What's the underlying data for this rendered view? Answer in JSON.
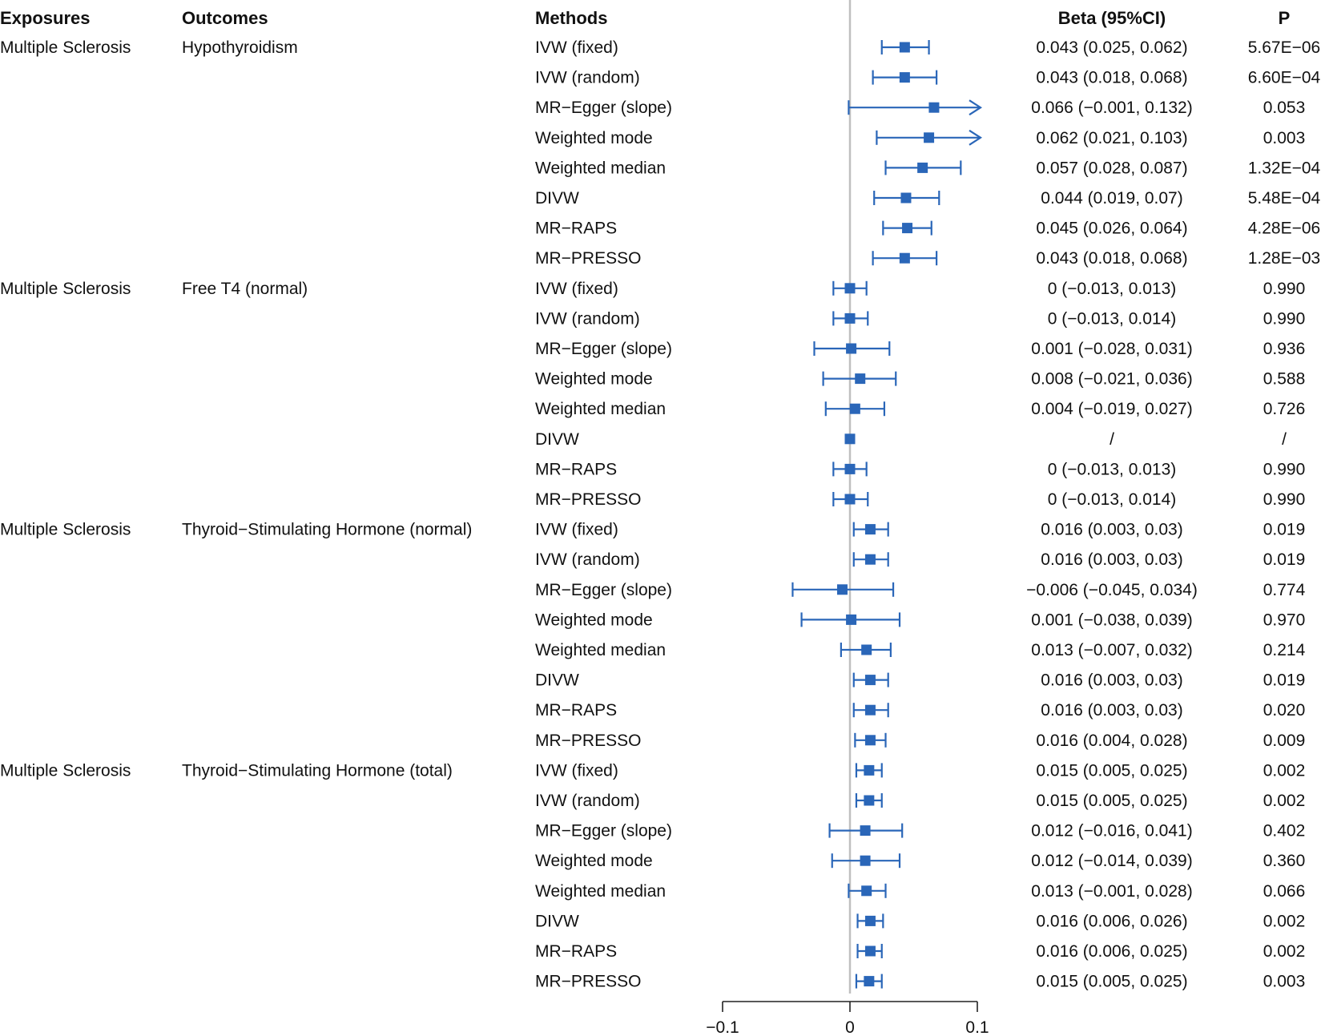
{
  "chart_data": {
    "type": "forest",
    "xlim": [
      -0.1,
      0.1
    ],
    "zero_line": 0,
    "marker_color": "#2a66b8",
    "zero_line_color": "#bfbfbf",
    "headers": {
      "exposures": "Exposures",
      "outcomes": "Outcomes",
      "methods": "Methods",
      "beta": "Beta (95%CI)",
      "p": "P"
    },
    "x_ticks": [
      {
        "value": -0.1,
        "label": "−0.1"
      },
      {
        "value": 0,
        "label": "0"
      },
      {
        "value": 0.1,
        "label": "0.1"
      }
    ],
    "groups": [
      {
        "exposure": "Multiple Sclerosis",
        "outcome": "Hypothyroidism",
        "rows": [
          {
            "method": "IVW (fixed)",
            "beta": 0.043,
            "lower": 0.025,
            "upper": 0.062,
            "beta_text": "0.043 (0.025, 0.062)",
            "p": "5.67E−06"
          },
          {
            "method": "IVW (random)",
            "beta": 0.043,
            "lower": 0.018,
            "upper": 0.068,
            "beta_text": "0.043 (0.018, 0.068)",
            "p": "6.60E−04"
          },
          {
            "method": "MR−Egger (slope)",
            "beta": 0.066,
            "lower": -0.001,
            "upper": 0.132,
            "beta_text": "0.066 (−0.001, 0.132)",
            "p": "0.053"
          },
          {
            "method": "Weighted mode",
            "beta": 0.062,
            "lower": 0.021,
            "upper": 0.103,
            "beta_text": "0.062 (0.021, 0.103)",
            "p": "0.003"
          },
          {
            "method": "Weighted median",
            "beta": 0.057,
            "lower": 0.028,
            "upper": 0.087,
            "beta_text": "0.057 (0.028, 0.087)",
            "p": "1.32E−04"
          },
          {
            "method": "DIVW",
            "beta": 0.044,
            "lower": 0.019,
            "upper": 0.07,
            "beta_text": "0.044 (0.019, 0.07)",
            "p": "5.48E−04"
          },
          {
            "method": "MR−RAPS",
            "beta": 0.045,
            "lower": 0.026,
            "upper": 0.064,
            "beta_text": "0.045 (0.026, 0.064)",
            "p": "4.28E−06"
          },
          {
            "method": "MR−PRESSO",
            "beta": 0.043,
            "lower": 0.018,
            "upper": 0.068,
            "beta_text": "0.043 (0.018, 0.068)",
            "p": "1.28E−03"
          }
        ]
      },
      {
        "exposure": "Multiple Sclerosis",
        "outcome": "Free T4 (normal)",
        "rows": [
          {
            "method": "IVW (fixed)",
            "beta": 0,
            "lower": -0.013,
            "upper": 0.013,
            "beta_text": "0 (−0.013, 0.013)",
            "p": "0.990"
          },
          {
            "method": "IVW (random)",
            "beta": 0,
            "lower": -0.013,
            "upper": 0.014,
            "beta_text": "0 (−0.013, 0.014)",
            "p": "0.990"
          },
          {
            "method": "MR−Egger (slope)",
            "beta": 0.001,
            "lower": -0.028,
            "upper": 0.031,
            "beta_text": "0.001 (−0.028, 0.031)",
            "p": "0.936"
          },
          {
            "method": "Weighted mode",
            "beta": 0.008,
            "lower": -0.021,
            "upper": 0.036,
            "beta_text": "0.008 (−0.021, 0.036)",
            "p": "0.588"
          },
          {
            "method": "Weighted median",
            "beta": 0.004,
            "lower": -0.019,
            "upper": 0.027,
            "beta_text": "0.004 (−0.019, 0.027)",
            "p": "0.726"
          },
          {
            "method": "DIVW",
            "beta": 0,
            "lower": null,
            "upper": null,
            "beta_text": "/",
            "p": "/"
          },
          {
            "method": "MR−RAPS",
            "beta": 0,
            "lower": -0.013,
            "upper": 0.013,
            "beta_text": "0 (−0.013, 0.013)",
            "p": "0.990"
          },
          {
            "method": "MR−PRESSO",
            "beta": 0,
            "lower": -0.013,
            "upper": 0.014,
            "beta_text": "0 (−0.013, 0.014)",
            "p": "0.990"
          }
        ]
      },
      {
        "exposure": "Multiple Sclerosis",
        "outcome": "Thyroid−Stimulating Hormone (normal)",
        "rows": [
          {
            "method": "IVW (fixed)",
            "beta": 0.016,
            "lower": 0.003,
            "upper": 0.03,
            "beta_text": "0.016 (0.003, 0.03)",
            "p": "0.019"
          },
          {
            "method": "IVW (random)",
            "beta": 0.016,
            "lower": 0.003,
            "upper": 0.03,
            "beta_text": "0.016 (0.003, 0.03)",
            "p": "0.019"
          },
          {
            "method": "MR−Egger (slope)",
            "beta": -0.006,
            "lower": -0.045,
            "upper": 0.034,
            "beta_text": "−0.006 (−0.045, 0.034)",
            "p": "0.774"
          },
          {
            "method": "Weighted mode",
            "beta": 0.001,
            "lower": -0.038,
            "upper": 0.039,
            "beta_text": "0.001 (−0.038, 0.039)",
            "p": "0.970"
          },
          {
            "method": "Weighted median",
            "beta": 0.013,
            "lower": -0.007,
            "upper": 0.032,
            "beta_text": "0.013 (−0.007, 0.032)",
            "p": "0.214"
          },
          {
            "method": "DIVW",
            "beta": 0.016,
            "lower": 0.003,
            "upper": 0.03,
            "beta_text": "0.016 (0.003, 0.03)",
            "p": "0.019"
          },
          {
            "method": "MR−RAPS",
            "beta": 0.016,
            "lower": 0.003,
            "upper": 0.03,
            "beta_text": "0.016 (0.003, 0.03)",
            "p": "0.020"
          },
          {
            "method": "MR−PRESSO",
            "beta": 0.016,
            "lower": 0.004,
            "upper": 0.028,
            "beta_text": "0.016 (0.004, 0.028)",
            "p": "0.009"
          }
        ]
      },
      {
        "exposure": "Multiple Sclerosis",
        "outcome": "Thyroid−Stimulating Hormone (total)",
        "rows": [
          {
            "method": "IVW (fixed)",
            "beta": 0.015,
            "lower": 0.005,
            "upper": 0.025,
            "beta_text": "0.015 (0.005, 0.025)",
            "p": "0.002"
          },
          {
            "method": "IVW (random)",
            "beta": 0.015,
            "lower": 0.005,
            "upper": 0.025,
            "beta_text": "0.015 (0.005, 0.025)",
            "p": "0.002"
          },
          {
            "method": "MR−Egger (slope)",
            "beta": 0.012,
            "lower": -0.016,
            "upper": 0.041,
            "beta_text": "0.012 (−0.016, 0.041)",
            "p": "0.402"
          },
          {
            "method": "Weighted mode",
            "beta": 0.012,
            "lower": -0.014,
            "upper": 0.039,
            "beta_text": "0.012 (−0.014, 0.039)",
            "p": "0.360"
          },
          {
            "method": "Weighted median",
            "beta": 0.013,
            "lower": -0.001,
            "upper": 0.028,
            "beta_text": "0.013 (−0.001, 0.028)",
            "p": "0.066"
          },
          {
            "method": "DIVW",
            "beta": 0.016,
            "lower": 0.006,
            "upper": 0.026,
            "beta_text": "0.016 (0.006, 0.026)",
            "p": "0.002"
          },
          {
            "method": "MR−RAPS",
            "beta": 0.016,
            "lower": 0.006,
            "upper": 0.025,
            "beta_text": "0.016 (0.006, 0.025)",
            "p": "0.002"
          },
          {
            "method": "MR−PRESSO",
            "beta": 0.015,
            "lower": 0.005,
            "upper": 0.025,
            "beta_text": "0.015 (0.005, 0.025)",
            "p": "0.003"
          }
        ]
      }
    ]
  }
}
